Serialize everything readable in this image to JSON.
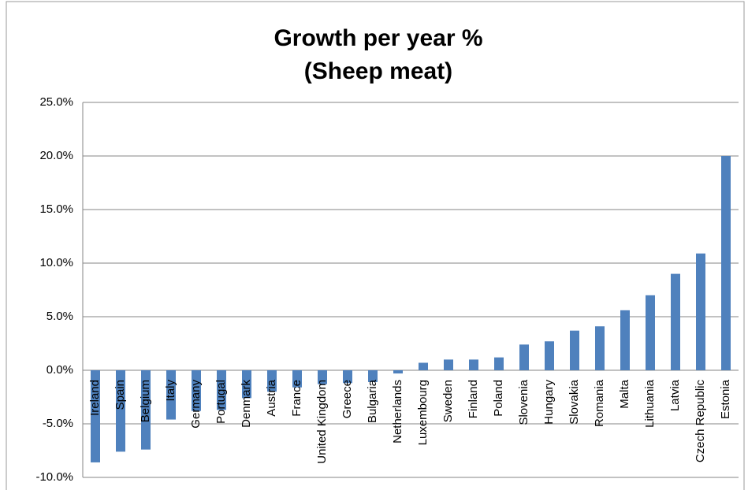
{
  "chart_data": {
    "type": "bar",
    "title": [
      "Growth per year %",
      "(Sheep meat)"
    ],
    "categories": [
      "Ireland",
      "Spain",
      "Belgium",
      "Italy",
      "Germany",
      "Portugal",
      "Denmark",
      "Austria",
      "France",
      "United Kingdom",
      "Greece",
      "Bulgaria",
      "Netherlands",
      "Luxembourg",
      "Sweden",
      "Finland",
      "Poland",
      "Slovenia",
      "Hungary",
      "Slovakia",
      "Romania",
      "Malta",
      "Lithuania",
      "Latvia",
      "Czech Republic",
      "Estonia"
    ],
    "values": [
      -8.6,
      -7.6,
      -7.4,
      -4.6,
      -3.8,
      -3.7,
      -2.6,
      -2.0,
      -1.6,
      -1.3,
      -1.2,
      -1.1,
      -0.3,
      0.7,
      1.0,
      1.0,
      1.2,
      2.4,
      2.7,
      3.7,
      4.1,
      5.6,
      7.0,
      9.0,
      10.9,
      20.0
    ],
    "color": "#4f81bd",
    "ylim": [
      -10,
      25
    ],
    "yticks": [
      {
        "value": -10,
        "label": "-10.0%"
      },
      {
        "value": -5,
        "label": "-5.0%"
      },
      {
        "value": 0,
        "label": "0.0%"
      },
      {
        "value": 5,
        "label": "5.0%"
      },
      {
        "value": 10,
        "label": "10.0%"
      },
      {
        "value": 15,
        "label": "15.0%"
      },
      {
        "value": 20,
        "label": "20.0%"
      },
      {
        "value": 25,
        "label": "25.0%"
      }
    ],
    "grid": true
  }
}
